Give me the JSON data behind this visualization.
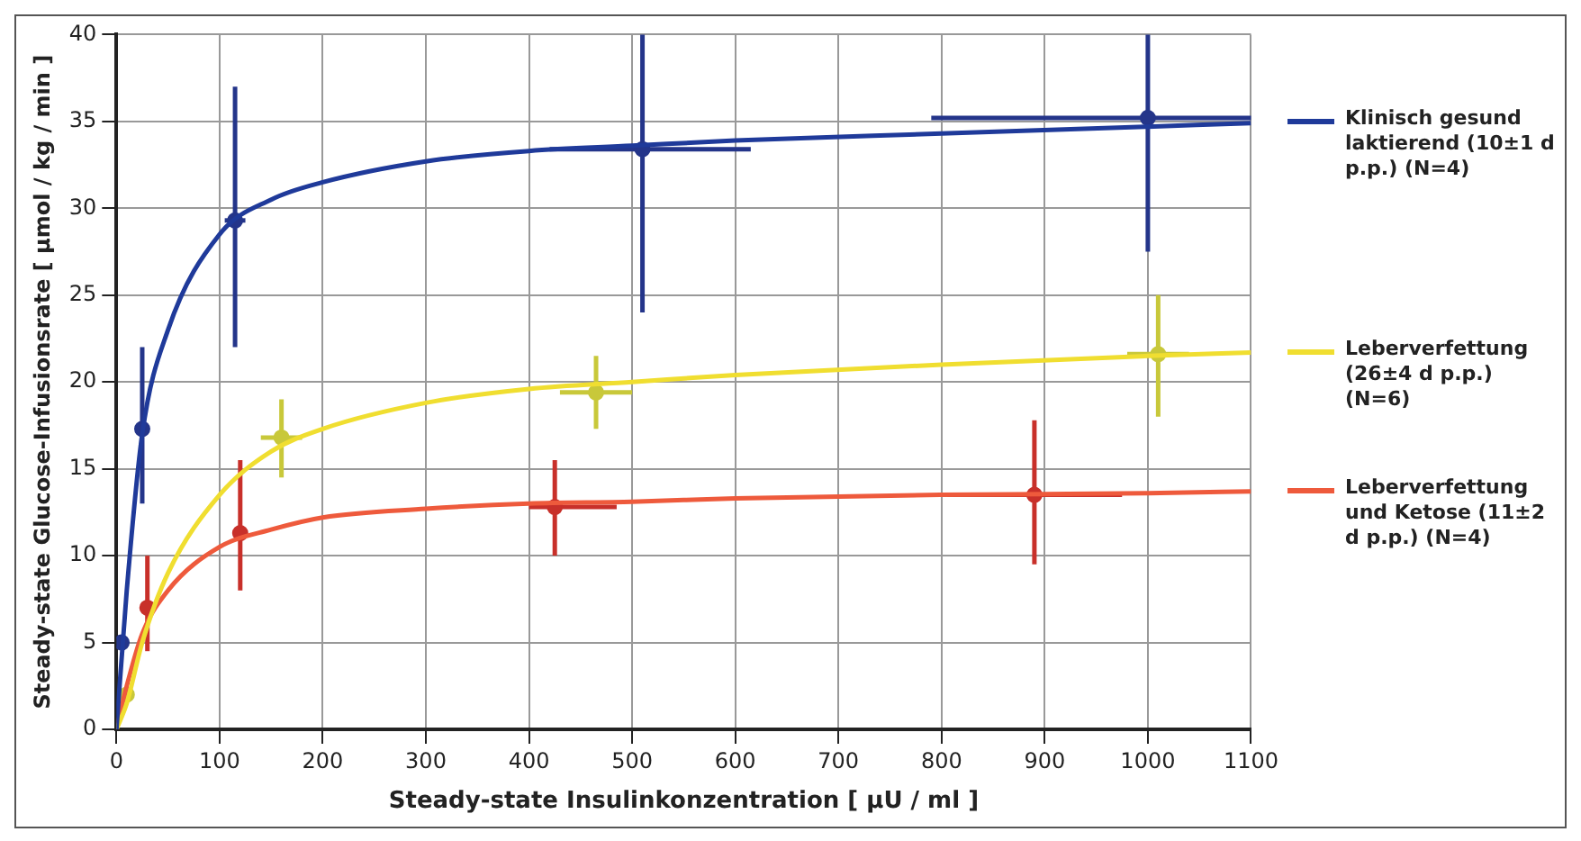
{
  "chart_data": {
    "type": "scatter",
    "xlabel": "Steady-state Insulinkonzentration [ µU / ml ]",
    "ylabel": "Steady-state Glucose-Infusionsrate [ µmol / kg / min ]",
    "xlim": [
      0,
      1100
    ],
    "xticks": [
      0,
      100,
      200,
      300,
      400,
      500,
      600,
      700,
      800,
      900,
      1000,
      1100
    ],
    "ylim": [
      0,
      40
    ],
    "yticks": [
      0,
      5,
      10,
      15,
      20,
      25,
      30,
      35,
      40
    ],
    "grid": true,
    "legend": "right",
    "marker": "circle",
    "series": [
      {
        "type": "line",
        "marker": "none",
        "name": "Klinisch gesund laktierend (10±1 d p.p.) (N=4)",
        "color": "#1f3a9a",
        "x": [
          0,
          10,
          25,
          50,
          100,
          150,
          200,
          300,
          400,
          500,
          600,
          800,
          1000,
          1100
        ],
        "values": [
          0,
          8,
          17,
          23,
          28.5,
          30.5,
          31.5,
          32.7,
          33.3,
          33.6,
          33.9,
          34.3,
          34.7,
          34.9
        ]
      },
      {
        "type": "line",
        "marker": "none",
        "name": "Leberverfettung (26±4 d p.p.) (N=6)",
        "color": "#f0de30",
        "x": [
          0,
          10,
          25,
          50,
          100,
          150,
          200,
          300,
          400,
          500,
          600,
          800,
          1000,
          1100
        ],
        "values": [
          0,
          1.5,
          5,
          9,
          13.5,
          16,
          17.3,
          18.8,
          19.6,
          20,
          20.4,
          21,
          21.5,
          21.7
        ]
      },
      {
        "type": "line",
        "marker": "none",
        "name": "Leberverfettung und Ketose (11±2 d p.p.) (N=4)",
        "color": "#ee5a3c",
        "x": [
          0,
          10,
          25,
          50,
          100,
          150,
          200,
          300,
          400,
          500,
          600,
          800,
          1000,
          1100
        ],
        "values": [
          0,
          2.5,
          5.5,
          8,
          10.5,
          11.5,
          12.2,
          12.7,
          13,
          13.1,
          13.3,
          13.5,
          13.6,
          13.7
        ]
      },
      {
        "color": "#24358a",
        "x": [
          5,
          25,
          115,
          510,
          1000
        ],
        "values": [
          5,
          17.3,
          29.3,
          33.4,
          35.2
        ],
        "errors": [
          null,
          [
            13,
            22
          ],
          [
            22,
            37
          ],
          [
            24,
            40
          ],
          [
            27.5,
            40
          ]
        ],
        "xerrors": [
          null,
          null,
          [
            105,
            125
          ],
          [
            420,
            615
          ],
          [
            790,
            1100
          ]
        ]
      },
      {
        "color": "#c8c83a",
        "x": [
          10,
          160,
          465,
          1010
        ],
        "values": [
          2,
          16.8,
          19.4,
          21.6
        ],
        "errors": [
          null,
          [
            14.5,
            19
          ],
          [
            17.3,
            21.5
          ],
          [
            18,
            25
          ]
        ],
        "xerrors": [
          null,
          [
            140,
            180
          ],
          [
            430,
            500
          ],
          [
            980,
            1040
          ]
        ]
      },
      {
        "color": "#c8302a",
        "x": [
          30,
          120,
          425,
          890
        ],
        "values": [
          7,
          11.3,
          12.8,
          13.5
        ],
        "errors": [
          [
            4.5,
            10
          ],
          [
            8,
            15.5
          ],
          [
            10,
            15.5
          ],
          [
            9.5,
            17.8
          ]
        ],
        "xerrors": [
          null,
          null,
          [
            400,
            485
          ],
          [
            805,
            975
          ]
        ]
      }
    ]
  }
}
